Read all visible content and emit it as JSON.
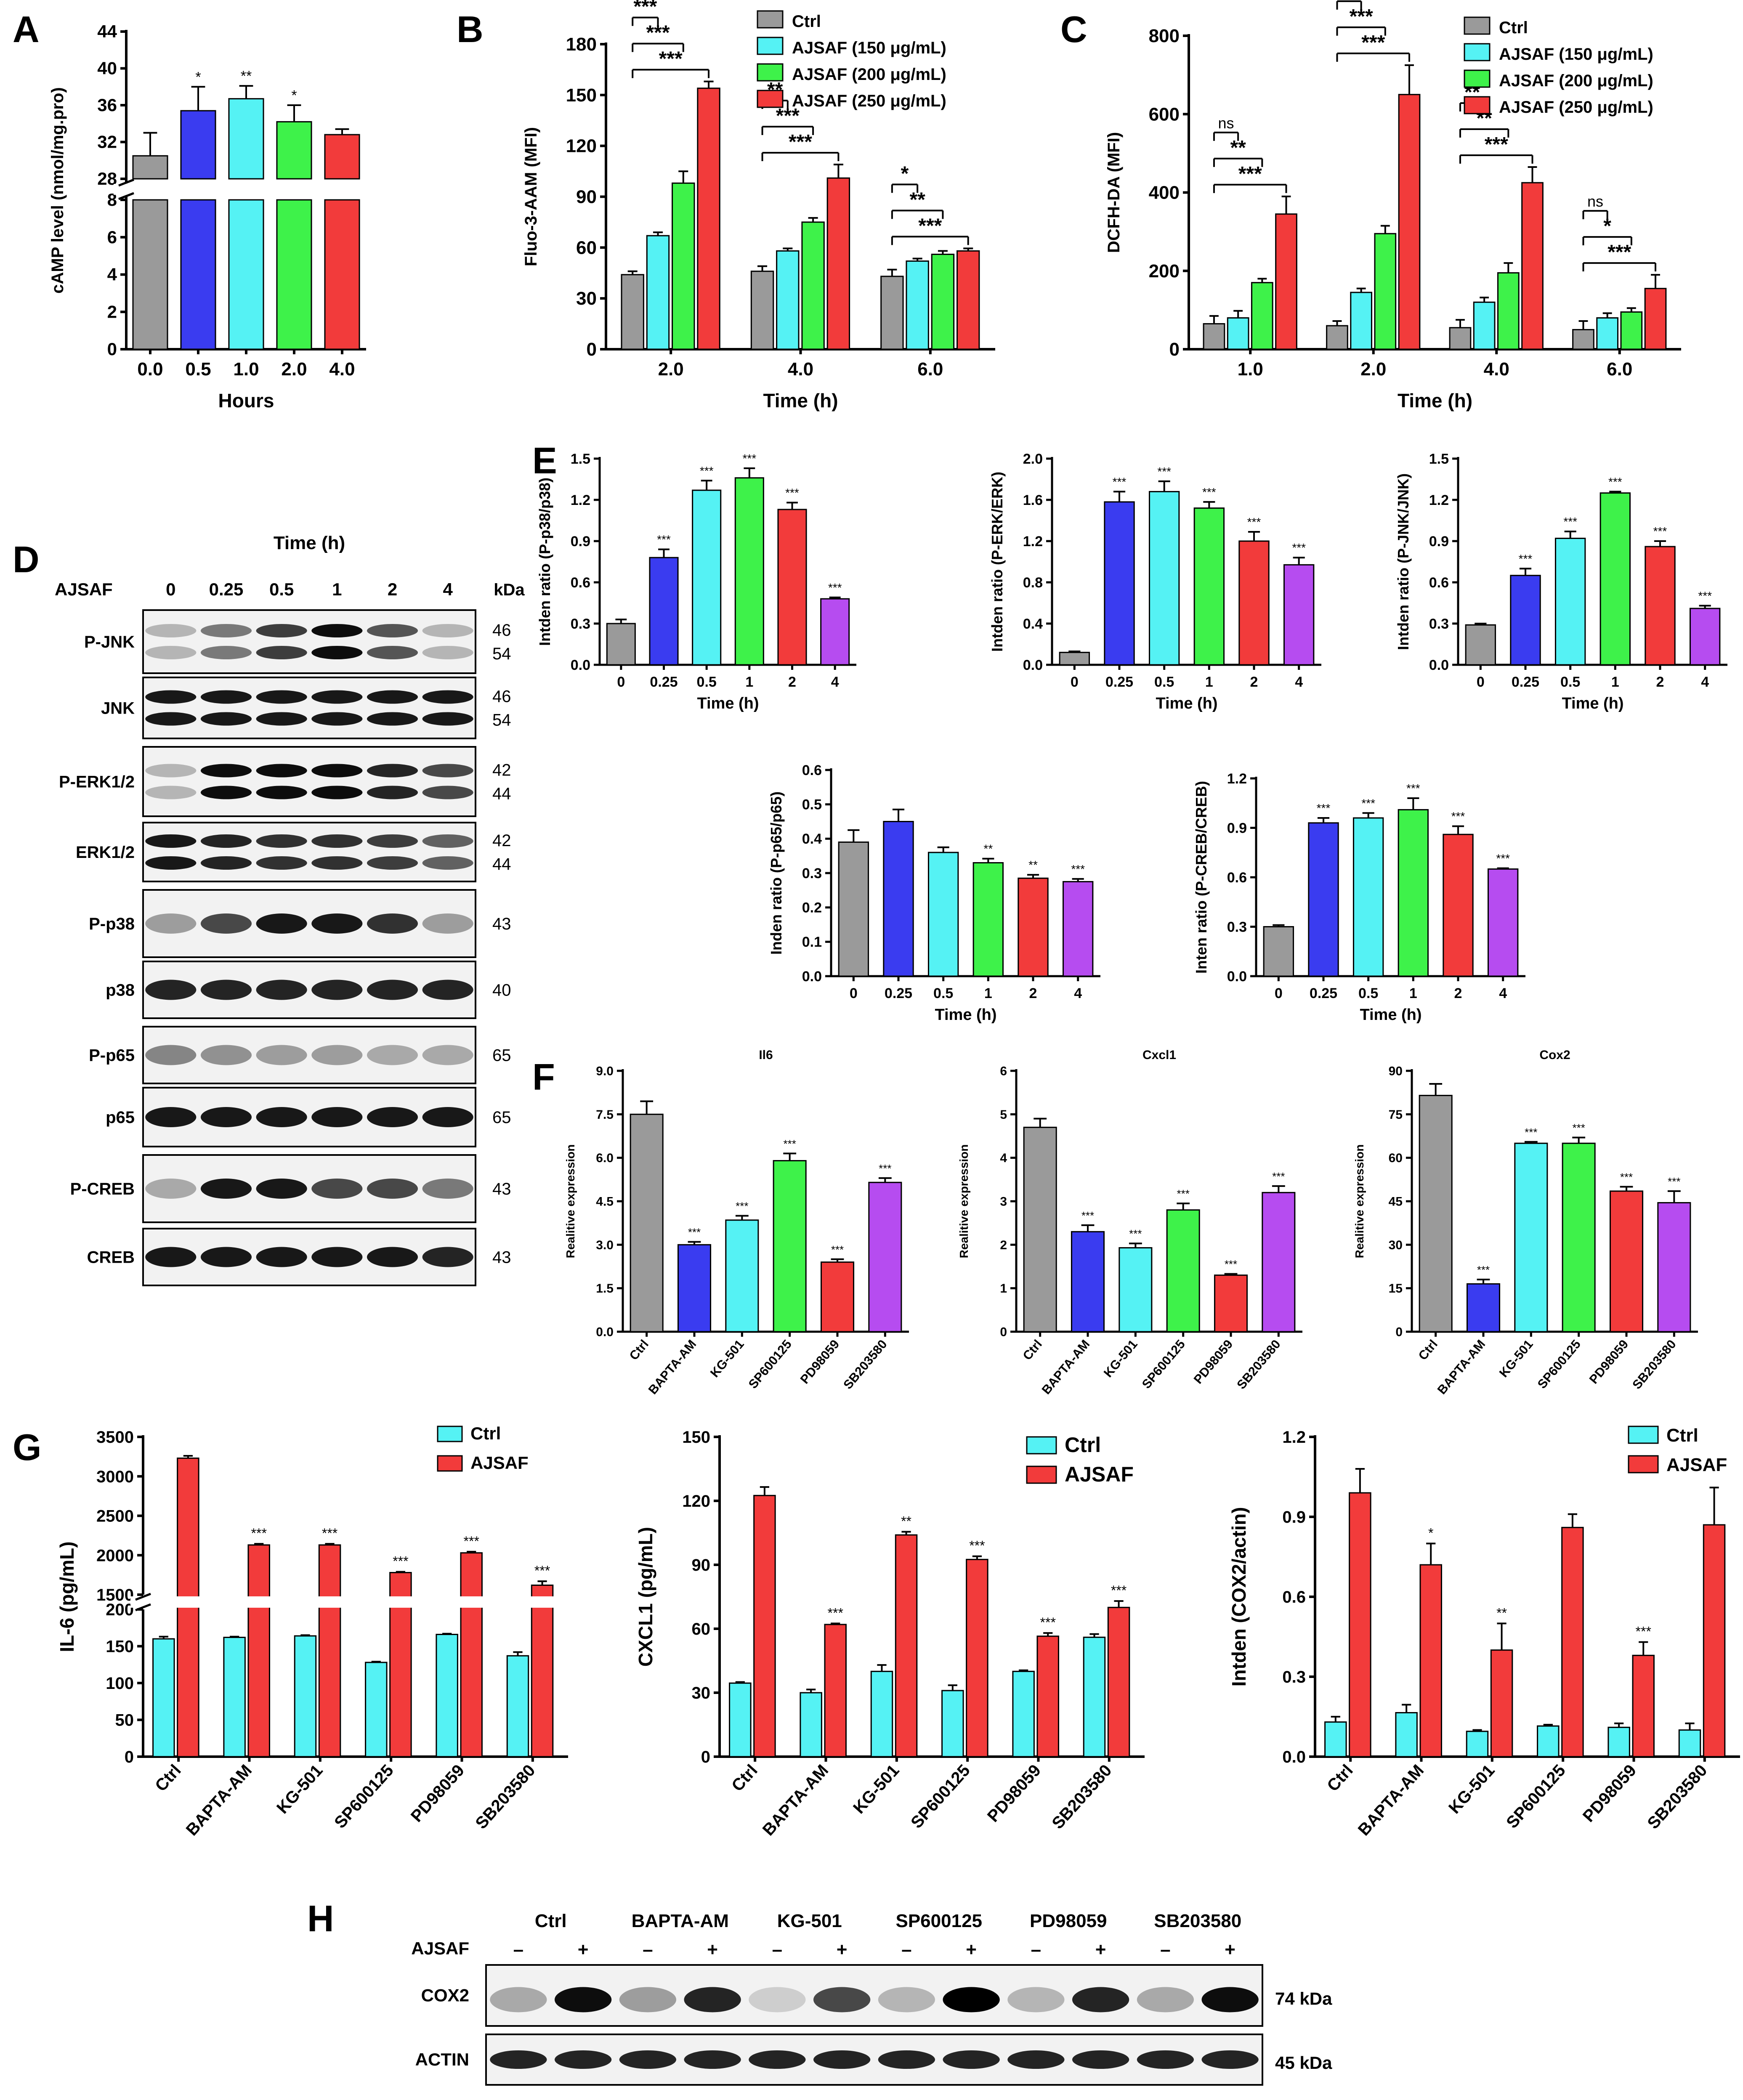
{
  "colors": {
    "gray": "#9a9a9a",
    "blue": "#3a3cf0",
    "cyan": "#55f2f4",
    "green": "#3ef24a",
    "red": "#f23b3b",
    "purple": "#b64cf0",
    "axis": "#000000"
  },
  "panels": {
    "A": "A",
    "B": "B",
    "C": "C",
    "D": "D",
    "E": "E",
    "F": "F",
    "G": "G",
    "H": "H"
  },
  "chart_data": [
    {
      "id": "A",
      "type": "bar",
      "ylabel": "cAMP level (nmol/mg.pro)",
      "xlabel": "Hours",
      "categories": [
        "0.0",
        "0.5",
        "1.0",
        "2.0",
        "4.0"
      ],
      "values": [
        30.5,
        35.4,
        36.7,
        34.2,
        32.8
      ],
      "errors": [
        2.5,
        2.6,
        1.4,
        1.8,
        0.6
      ],
      "sig": [
        "",
        "*",
        "**",
        "*",
        ""
      ],
      "colors": [
        "gray",
        "blue",
        "cyan",
        "green",
        "red"
      ],
      "ylim_lower": [
        0,
        8
      ],
      "ylim_upper": [
        28,
        44
      ],
      "yticks_lower": [
        "0",
        "2",
        "4",
        "6",
        "8"
      ],
      "yticks_upper": [
        "28",
        "32",
        "36",
        "40",
        "44"
      ]
    },
    {
      "id": "B",
      "type": "bar",
      "ylabel": "Fluo-3-AAM (MFI)",
      "xlabel": "Time (h)",
      "categories": [
        "2.0",
        "4.0",
        "6.0"
      ],
      "legend": [
        "Ctrl",
        "AJSAF (150 μg/mL)",
        "AJSAF (200 μg/mL)",
        "AJSAF (250 μg/mL)"
      ],
      "series": [
        {
          "name": "Ctrl",
          "values": [
            44,
            46,
            43
          ],
          "errors": [
            2,
            3,
            4
          ]
        },
        {
          "name": "AJSAF (150 μg/mL)",
          "values": [
            67,
            58,
            52
          ],
          "errors": [
            2,
            1.5,
            1.5
          ]
        },
        {
          "name": "AJSAF (200 μg/mL)",
          "values": [
            98,
            75,
            56
          ],
          "errors": [
            7,
            2.5,
            2
          ]
        },
        {
          "name": "AJSAF (250 μg/mL)",
          "values": [
            154,
            101,
            58
          ],
          "errors": [
            4,
            8,
            1.5
          ]
        }
      ],
      "ylim": [
        0,
        180
      ],
      "yticks": [
        "0",
        "30",
        "60",
        "90",
        "120",
        "150",
        "180"
      ],
      "brackets": [
        {
          "g": 0,
          "to": 3,
          "label": "***"
        },
        {
          "g": 0,
          "to": 2,
          "label": "***"
        },
        {
          "g": 0,
          "to": 1,
          "label": "***"
        },
        {
          "g": 1,
          "to": 3,
          "label": "***"
        },
        {
          "g": 1,
          "to": 2,
          "label": "***"
        },
        {
          "g": 1,
          "to": 1,
          "label": "**"
        },
        {
          "g": 2,
          "to": 3,
          "label": "***"
        },
        {
          "g": 2,
          "to": 2,
          "label": "**"
        },
        {
          "g": 2,
          "to": 1,
          "label": "*"
        }
      ]
    },
    {
      "id": "C",
      "type": "bar",
      "ylabel": "DCFH-DA (MFI)",
      "xlabel": "Time (h)",
      "categories": [
        "1.0",
        "2.0",
        "4.0",
        "6.0"
      ],
      "legend": [
        "Ctrl",
        "AJSAF (150 μg/mL)",
        "AJSAF (200 μg/mL)",
        "AJSAF (250 μg/mL)"
      ],
      "series": [
        {
          "name": "Ctrl",
          "values": [
            65,
            60,
            55,
            50
          ],
          "errors": [
            20,
            12,
            20,
            22
          ]
        },
        {
          "name": "AJSAF (150 μg/mL)",
          "values": [
            80,
            145,
            120,
            80
          ],
          "errors": [
            18,
            10,
            12,
            12
          ]
        },
        {
          "name": "AJSAF (200 μg/mL)",
          "values": [
            170,
            295,
            195,
            95
          ],
          "errors": [
            10,
            20,
            25,
            10
          ]
        },
        {
          "name": "AJSAF (250 μg/mL)",
          "values": [
            345,
            650,
            425,
            155
          ],
          "errors": [
            45,
            75,
            40,
            35
          ]
        }
      ],
      "ylim": [
        0,
        800
      ],
      "yticks": [
        "0",
        "200",
        "400",
        "600",
        "800"
      ],
      "brackets": [
        {
          "g": 0,
          "to": 3,
          "label": "***"
        },
        {
          "g": 0,
          "to": 2,
          "label": "**"
        },
        {
          "g": 0,
          "to": 1,
          "label": "ns"
        },
        {
          "g": 1,
          "to": 3,
          "label": "***"
        },
        {
          "g": 1,
          "to": 2,
          "label": "***"
        },
        {
          "g": 1,
          "to": 1,
          "label": "***"
        },
        {
          "g": 2,
          "to": 3,
          "label": "***"
        },
        {
          "g": 2,
          "to": 2,
          "label": "**"
        },
        {
          "g": 2,
          "to": 1,
          "label": "**"
        },
        {
          "g": 3,
          "to": 3,
          "label": "***"
        },
        {
          "g": 3,
          "to": 2,
          "label": "*"
        },
        {
          "g": 3,
          "to": 1,
          "label": "ns"
        }
      ]
    },
    {
      "id": "E1",
      "type": "bar",
      "ylabel": "Intden ratio (P-p38/p38)",
      "xlabel": "Time (h)",
      "categories": [
        "0",
        "0.25",
        "0.5",
        "1",
        "2",
        "4"
      ],
      "values": [
        0.3,
        0.78,
        1.27,
        1.36,
        1.13,
        0.48
      ],
      "errors": [
        0.03,
        0.06,
        0.07,
        0.07,
        0.05,
        0.01
      ],
      "sig": [
        "",
        "***",
        "***",
        "***",
        "***",
        "***"
      ],
      "colors": [
        "gray",
        "blue",
        "cyan",
        "green",
        "red",
        "purple"
      ],
      "ylim": [
        0,
        1.5
      ],
      "yticks": [
        "0.0",
        "0.3",
        "0.6",
        "0.9",
        "1.2",
        "1.5"
      ]
    },
    {
      "id": "E2",
      "type": "bar",
      "ylabel": "Intden ratio (P-ERK/ERK)",
      "xlabel": "Time (h)",
      "categories": [
        "0",
        "0.25",
        "0.5",
        "1",
        "2",
        "4"
      ],
      "values": [
        0.12,
        1.58,
        1.68,
        1.52,
        1.2,
        0.97
      ],
      "errors": [
        0.01,
        0.1,
        0.1,
        0.06,
        0.09,
        0.07
      ],
      "sig": [
        "",
        "***",
        "***",
        "***",
        "***",
        "***"
      ],
      "colors": [
        "gray",
        "blue",
        "cyan",
        "green",
        "red",
        "purple"
      ],
      "ylim": [
        0,
        2.0
      ],
      "yticks": [
        "0.0",
        "0.4",
        "0.8",
        "1.2",
        "1.6",
        "2.0"
      ]
    },
    {
      "id": "E3",
      "type": "bar",
      "ylabel": "Intden ratio (P-JNK/JNK)",
      "xlabel": "Time (h)",
      "categories": [
        "0",
        "0.25",
        "0.5",
        "1",
        "2",
        "4"
      ],
      "values": [
        0.29,
        0.65,
        0.92,
        1.25,
        0.86,
        0.41
      ],
      "errors": [
        0.01,
        0.05,
        0.05,
        0.01,
        0.04,
        0.02
      ],
      "sig": [
        "",
        "***",
        "***",
        "***",
        "***",
        "***"
      ],
      "colors": [
        "gray",
        "blue",
        "cyan",
        "green",
        "red",
        "purple"
      ],
      "ylim": [
        0,
        1.5
      ],
      "yticks": [
        "0.0",
        "0.3",
        "0.6",
        "0.9",
        "1.2",
        "1.5"
      ]
    },
    {
      "id": "E4",
      "type": "bar",
      "ylabel": "Inden ratio (P-p65/p65)",
      "xlabel": "Time (h)",
      "categories": [
        "0",
        "0.25",
        "0.5",
        "1",
        "2",
        "4"
      ],
      "values": [
        0.39,
        0.45,
        0.36,
        0.33,
        0.285,
        0.275
      ],
      "errors": [
        0.035,
        0.035,
        0.015,
        0.012,
        0.01,
        0.008
      ],
      "sig": [
        "",
        "",
        "",
        "**",
        "**",
        "***"
      ],
      "colors": [
        "gray",
        "blue",
        "cyan",
        "green",
        "red",
        "purple"
      ],
      "ylim": [
        0,
        0.6
      ],
      "yticks": [
        "0.0",
        "0.1",
        "0.2",
        "0.3",
        "0.4",
        "0.5",
        "0.6"
      ]
    },
    {
      "id": "E5",
      "type": "bar",
      "ylabel": "Inten ratio (P-CREB/CREB)",
      "xlabel": "Time (h)",
      "categories": [
        "0",
        "0.25",
        "0.5",
        "1",
        "2",
        "4"
      ],
      "values": [
        0.3,
        0.93,
        0.96,
        1.01,
        0.86,
        0.65
      ],
      "errors": [
        0.01,
        0.03,
        0.03,
        0.07,
        0.05,
        0.005
      ],
      "sig": [
        "",
        "***",
        "***",
        "***",
        "***",
        "***"
      ],
      "colors": [
        "gray",
        "blue",
        "cyan",
        "green",
        "red",
        "purple"
      ],
      "ylim": [
        0,
        1.2
      ],
      "yticks": [
        "0.0",
        "0.3",
        "0.6",
        "0.9",
        "1.2"
      ]
    },
    {
      "id": "F1",
      "type": "bar",
      "title": "Il6",
      "ylabel": "Realitive expression",
      "categories": [
        "Ctrl",
        "BAPTA-AM",
        "KG-501",
        "SP600125",
        "PD98059",
        "SB203580"
      ],
      "values": [
        7.5,
        3.0,
        3.85,
        5.9,
        2.4,
        5.15
      ],
      "errors": [
        0.45,
        0.1,
        0.15,
        0.25,
        0.1,
        0.15
      ],
      "sig": [
        "",
        "***",
        "***",
        "***",
        "***",
        "***"
      ],
      "colors": [
        "gray",
        "blue",
        "cyan",
        "green",
        "red",
        "purple"
      ],
      "ylim": [
        0,
        9
      ],
      "yticks": [
        "0.0",
        "1.5",
        "3.0",
        "4.5",
        "6.0",
        "7.5",
        "9.0"
      ]
    },
    {
      "id": "F2",
      "type": "bar",
      "title": "Cxcl1",
      "ylabel": "Realitive expression",
      "categories": [
        "Ctrl",
        "BAPTA-AM",
        "KG-501",
        "SP600125",
        "PD98059",
        "SB203580"
      ],
      "values": [
        4.7,
        2.3,
        1.93,
        2.8,
        1.3,
        3.2
      ],
      "errors": [
        0.2,
        0.15,
        0.1,
        0.15,
        0.03,
        0.15
      ],
      "sig": [
        "",
        "***",
        "***",
        "***",
        "***",
        "***"
      ],
      "colors": [
        "gray",
        "blue",
        "cyan",
        "green",
        "red",
        "purple"
      ],
      "ylim": [
        0,
        6
      ],
      "yticks": [
        "0",
        "1",
        "2",
        "3",
        "4",
        "5",
        "6"
      ]
    },
    {
      "id": "F3",
      "type": "bar",
      "title": "Cox2",
      "ylabel": "Realitive expression",
      "categories": [
        "Ctrl",
        "BAPTA-AM",
        "KG-501",
        "SP600125",
        "PD98059",
        "SB203580"
      ],
      "values": [
        81.5,
        16.5,
        65,
        65,
        48.5,
        44.5
      ],
      "errors": [
        4,
        1.5,
        0.5,
        2,
        1.5,
        4
      ],
      "sig": [
        "",
        "***",
        "***",
        "***",
        "***",
        "***"
      ],
      "colors": [
        "gray",
        "blue",
        "cyan",
        "green",
        "red",
        "purple"
      ],
      "ylim": [
        0,
        90
      ],
      "yticks": [
        "0",
        "15",
        "30",
        "45",
        "60",
        "75",
        "90"
      ]
    },
    {
      "id": "G1",
      "type": "bar",
      "ylabel": "IL-6 (pg/mL)",
      "categories": [
        "Ctrl",
        "BAPTA-AM",
        "KG-501",
        "SP600125",
        "PD98059",
        "SB203580"
      ],
      "legend": [
        "Ctrl",
        "AJSAF"
      ],
      "series": [
        {
          "name": "Ctrl",
          "values": [
            160,
            162,
            164,
            128,
            166,
            137
          ],
          "errors": [
            3,
            1,
            1,
            1,
            1,
            5
          ]
        },
        {
          "name": "AJSAF",
          "values": [
            3230,
            2130,
            2130,
            1780,
            2030,
            1620
          ],
          "errors": [
            30,
            15,
            15,
            10,
            15,
            50
          ]
        }
      ],
      "sig": [
        "",
        "***",
        "***",
        "***",
        "***",
        "***"
      ],
      "ylim_lower": [
        0,
        200
      ],
      "ylim_upper": [
        1500,
        3500
      ],
      "yticks_lower": [
        "0",
        "50",
        "100",
        "150",
        "200"
      ],
      "yticks_upper": [
        "1500",
        "2000",
        "2500",
        "3000",
        "3500"
      ]
    },
    {
      "id": "G2",
      "type": "bar",
      "ylabel": "CXCL1 (pg/mL)",
      "categories": [
        "Ctrl",
        "BAPTA-AM",
        "KG-501",
        "SP600125",
        "PD98059",
        "SB203580"
      ],
      "legend": [
        "Ctrl",
        "AJSAF"
      ],
      "series": [
        {
          "name": "Ctrl",
          "values": [
            34.5,
            30,
            40,
            31,
            40,
            56
          ],
          "errors": [
            0.5,
            1.5,
            3,
            2.5,
            0.5,
            1.5
          ]
        },
        {
          "name": "AJSAF",
          "values": [
            122.5,
            62,
            104,
            92.5,
            56.5,
            70
          ],
          "errors": [
            4,
            0.5,
            1.5,
            1.5,
            1.5,
            3
          ]
        }
      ],
      "sig": [
        "",
        "***",
        "**",
        "***",
        "***",
        "***"
      ],
      "ylim": [
        0,
        150
      ],
      "yticks": [
        "0",
        "30",
        "60",
        "90",
        "120",
        "150"
      ]
    },
    {
      "id": "G3",
      "type": "bar",
      "ylabel": "Intden (COX2/actin)",
      "categories": [
        "Ctrl",
        "BAPTA-AM",
        "KG-501",
        "SP600125",
        "PD98059",
        "SB203580"
      ],
      "legend": [
        "Ctrl",
        "AJSAF"
      ],
      "series": [
        {
          "name": "Ctrl",
          "values": [
            0.13,
            0.165,
            0.095,
            0.115,
            0.11,
            0.1
          ],
          "errors": [
            0.02,
            0.03,
            0.005,
            0.005,
            0.015,
            0.025
          ]
        },
        {
          "name": "AJSAF",
          "values": [
            0.99,
            0.72,
            0.4,
            0.86,
            0.38,
            0.87
          ],
          "errors": [
            0.09,
            0.08,
            0.1,
            0.05,
            0.05,
            0.14
          ]
        }
      ],
      "sig": [
        "",
        "*",
        "**",
        "",
        "***",
        ""
      ],
      "ylim": [
        0,
        1.2
      ],
      "yticks": [
        "0.0",
        "0.3",
        "0.6",
        "0.9",
        "1.2"
      ]
    }
  ],
  "blots_D": {
    "title": "Time (h)",
    "treatment": "AJSAF",
    "lanes": [
      "0",
      "0.25",
      "0.5",
      "1",
      "2",
      "4"
    ],
    "kda": "kDa",
    "rows": [
      {
        "label": "P-JNK",
        "kda": [
          "46",
          "54"
        ],
        "int": [
          0.25,
          0.5,
          0.75,
          0.95,
          0.65,
          0.25
        ]
      },
      {
        "label": "JNK",
        "kda": [
          "46",
          "54"
        ],
        "int": [
          0.9,
          0.9,
          0.9,
          0.9,
          0.9,
          0.9
        ]
      },
      {
        "label": "P-ERK1/2",
        "kda": [
          "42",
          "44"
        ],
        "int": [
          0.25,
          0.95,
          0.95,
          0.95,
          0.85,
          0.7
        ]
      },
      {
        "label": "ERK1/2",
        "kda": [
          "42",
          "44"
        ],
        "int": [
          0.9,
          0.85,
          0.8,
          0.8,
          0.75,
          0.6
        ]
      },
      {
        "label": "P-p38",
        "kda": [
          "43"
        ],
        "int": [
          0.35,
          0.7,
          0.9,
          0.9,
          0.8,
          0.35
        ]
      },
      {
        "label": "p38",
        "kda": [
          "40"
        ],
        "int": [
          0.85,
          0.85,
          0.85,
          0.85,
          0.85,
          0.85
        ]
      },
      {
        "label": "P-p65",
        "kda": [
          "65"
        ],
        "int": [
          0.45,
          0.4,
          0.35,
          0.35,
          0.3,
          0.3
        ]
      },
      {
        "label": "p65",
        "kda": [
          "65"
        ],
        "int": [
          0.9,
          0.9,
          0.9,
          0.9,
          0.9,
          0.9
        ]
      },
      {
        "label": "P-CREB",
        "kda": [
          "43"
        ],
        "int": [
          0.3,
          0.9,
          0.9,
          0.7,
          0.7,
          0.5
        ]
      },
      {
        "label": "CREB",
        "kda": [
          "43"
        ],
        "int": [
          0.9,
          0.9,
          0.9,
          0.9,
          0.9,
          0.85
        ]
      }
    ]
  },
  "blots_H": {
    "groups": [
      "Ctrl",
      "BAPTA-AM",
      "KG-501",
      "SP600125",
      "PD98059",
      "SB203580"
    ],
    "treatment": "AJSAF",
    "signs": [
      "–",
      "+"
    ],
    "rows": [
      {
        "label": "COX2",
        "kda": "74 kDa",
        "int": [
          0.3,
          0.95,
          0.35,
          0.85,
          0.15,
          0.7,
          0.25,
          1.0,
          0.25,
          0.85,
          0.3,
          0.95
        ]
      },
      {
        "label": "ACTIN",
        "kda": "45 kDa",
        "int": [
          0.85,
          0.85,
          0.85,
          0.85,
          0.85,
          0.85,
          0.85,
          0.85,
          0.85,
          0.85,
          0.85,
          0.85
        ]
      }
    ]
  }
}
